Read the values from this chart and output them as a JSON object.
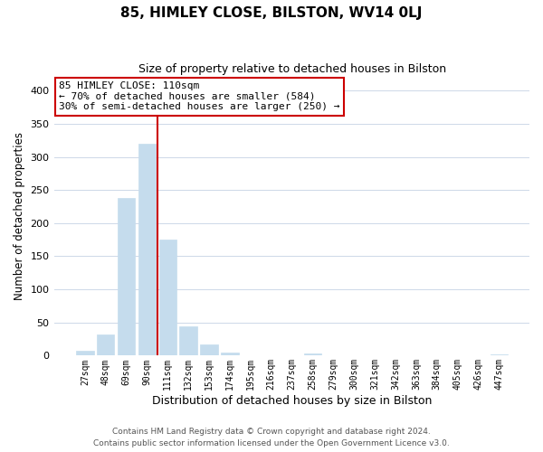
{
  "title": "85, HIMLEY CLOSE, BILSTON, WV14 0LJ",
  "subtitle": "Size of property relative to detached houses in Bilston",
  "xlabel": "Distribution of detached houses by size in Bilston",
  "ylabel": "Number of detached properties",
  "bar_color": "#c5dced",
  "bar_edge_color": "#c5dced",
  "vline_color": "#cc0000",
  "vline_x_index": 4,
  "annotation_text": "85 HIMLEY CLOSE: 110sqm\n← 70% of detached houses are smaller (584)\n30% of semi-detached houses are larger (250) →",
  "annotation_box_color": "#ffffff",
  "annotation_box_edge_color": "#cc0000",
  "categories": [
    "27sqm",
    "48sqm",
    "69sqm",
    "90sqm",
    "111sqm",
    "132sqm",
    "153sqm",
    "174sqm",
    "195sqm",
    "216sqm",
    "237sqm",
    "258sqm",
    "279sqm",
    "300sqm",
    "321sqm",
    "342sqm",
    "363sqm",
    "384sqm",
    "405sqm",
    "426sqm",
    "447sqm"
  ],
  "values": [
    8,
    32,
    238,
    320,
    175,
    44,
    17,
    5,
    0,
    0,
    0,
    3,
    0,
    1,
    0,
    0,
    0,
    0,
    0,
    0,
    2
  ],
  "ylim": [
    0,
    420
  ],
  "yticks": [
    0,
    50,
    100,
    150,
    200,
    250,
    300,
    350,
    400
  ],
  "footnote1": "Contains HM Land Registry data © Crown copyright and database right 2024.",
  "footnote2": "Contains public sector information licensed under the Open Government Licence v3.0.",
  "background_color": "#ffffff",
  "grid_color": "#cdd8e8"
}
